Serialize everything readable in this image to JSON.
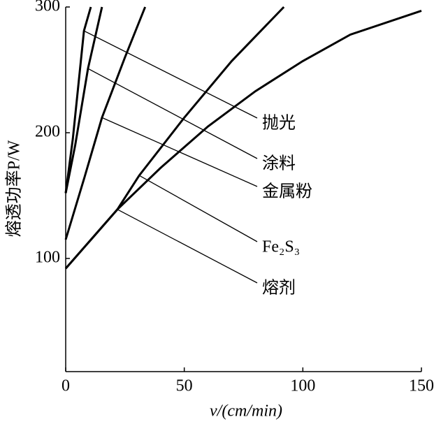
{
  "chart_data": {
    "type": "line",
    "x_label": "v/(cm/min)",
    "y_label": "熔透功率P/W",
    "xlim": [
      0,
      150
    ],
    "ylim": [
      10,
      300
    ],
    "xticks": [
      0,
      50,
      100,
      150
    ],
    "yticks": [
      100,
      200,
      300
    ],
    "color": "#000000",
    "series": [
      {
        "name": "抛光",
        "x": [
          0,
          3,
          7.7,
          10.6
        ],
        "values": [
          152,
          195,
          281,
          300
        ]
      },
      {
        "name": "涂料",
        "x": [
          0,
          4,
          9.4,
          15.3
        ],
        "values": [
          152,
          190,
          251,
          300
        ]
      },
      {
        "name": "金属粉",
        "x": [
          0,
          8,
          15.3,
          25,
          33.5
        ],
        "values": [
          115,
          165,
          212,
          260,
          300
        ]
      },
      {
        "name": "Fe₂S₃",
        "x": [
          0,
          21.8,
          31,
          50,
          70,
          92
        ],
        "values": [
          92,
          139,
          166,
          212,
          257,
          300
        ]
      },
      {
        "name": "熔剂",
        "x": [
          0,
          21.8,
          40,
          60,
          80,
          100,
          120,
          150
        ],
        "values": [
          92,
          139,
          172,
          205,
          233,
          257,
          278,
          297
        ]
      }
    ]
  }
}
